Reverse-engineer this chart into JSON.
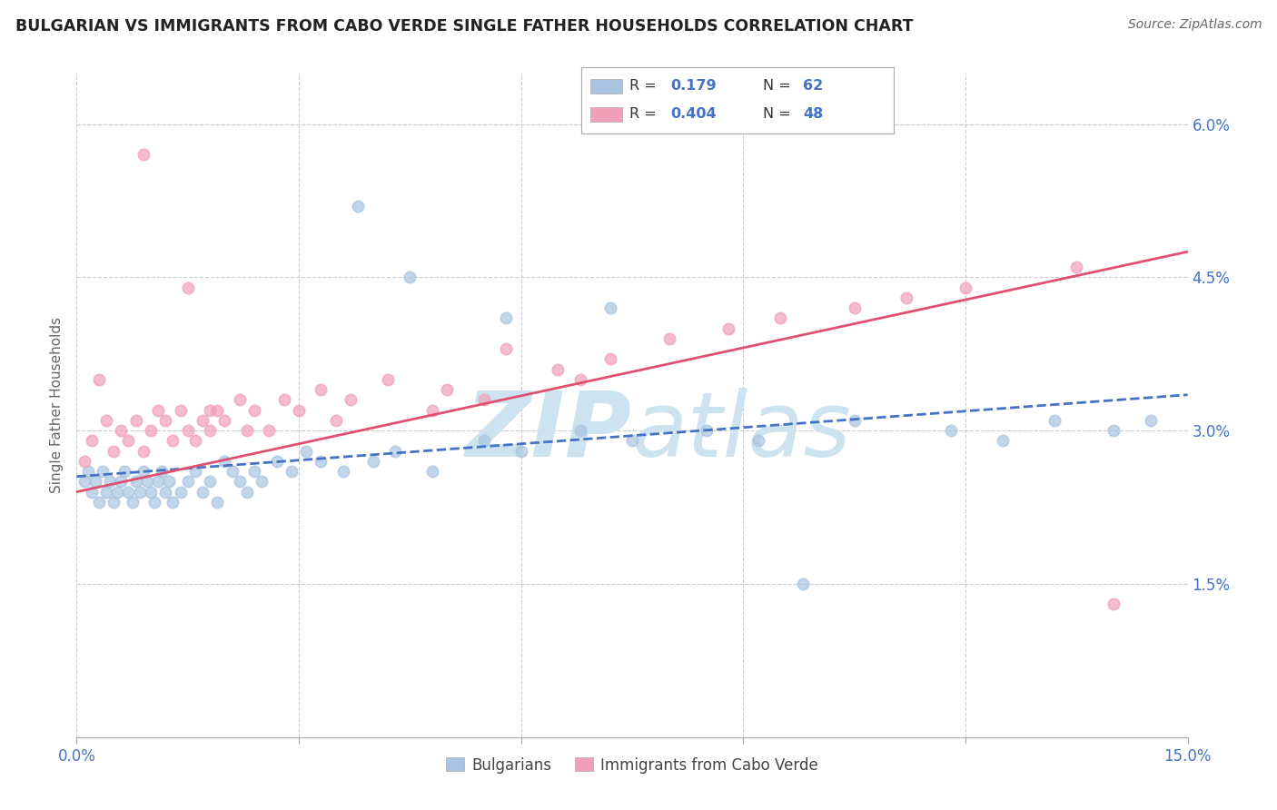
{
  "title": "BULGARIAN VS IMMIGRANTS FROM CABO VERDE SINGLE FATHER HOUSEHOLDS CORRELATION CHART",
  "source": "Source: ZipAtlas.com",
  "ylabel": "Single Father Households",
  "watermark": "ZIPat las",
  "xlim": [
    0.0,
    15.0
  ],
  "ylim": [
    0.0,
    6.5
  ],
  "xticks": [
    0.0,
    3.0,
    6.0,
    9.0,
    12.0,
    15.0
  ],
  "yticks_right": [
    1.5,
    3.0,
    4.5,
    6.0
  ],
  "ytick_labels_right": [
    "1.5%",
    "3.0%",
    "4.5%",
    "6.0%"
  ],
  "legend_labels": [
    "Bulgarians",
    "Immigrants from Cabo Verde"
  ],
  "R_bulgarian": 0.179,
  "N_bulgarian": 62,
  "R_cabo_verde": 0.404,
  "N_cabo_verde": 48,
  "scatter_color_bulgarian": "#a8c4e0",
  "scatter_color_cabo_verde": "#f0a0b8",
  "line_color_bulgarian": "#4472c4",
  "line_color_cabo_verde": "#e05070",
  "background_color": "#ffffff",
  "grid_color": "#cccccc",
  "title_color": "#222222",
  "source_color": "#666666",
  "watermark_color": "#cde4f0",
  "axis_label_color": "#4472c4",
  "bulgarian_x": [
    0.1,
    0.15,
    0.2,
    0.25,
    0.3,
    0.35,
    0.4,
    0.45,
    0.5,
    0.55,
    0.6,
    0.65,
    0.7,
    0.75,
    0.8,
    0.85,
    0.9,
    0.95,
    1.0,
    1.05,
    1.1,
    1.15,
    1.2,
    1.25,
    1.3,
    1.4,
    1.5,
    1.6,
    1.7,
    1.8,
    1.9,
    2.0,
    2.1,
    2.2,
    2.3,
    2.4,
    2.5,
    2.7,
    2.9,
    3.1,
    3.3,
    3.6,
    4.0,
    4.3,
    4.8,
    5.5,
    6.0,
    6.8,
    7.5,
    8.5,
    9.2,
    10.5,
    11.8,
    12.5,
    13.2,
    14.0,
    5.8,
    3.8,
    4.5,
    7.2,
    9.8,
    14.5
  ],
  "bulgarian_y": [
    2.5,
    2.6,
    2.4,
    2.5,
    2.3,
    2.6,
    2.4,
    2.5,
    2.3,
    2.4,
    2.5,
    2.6,
    2.4,
    2.3,
    2.5,
    2.4,
    2.6,
    2.5,
    2.4,
    2.3,
    2.5,
    2.6,
    2.4,
    2.5,
    2.3,
    2.4,
    2.5,
    2.6,
    2.4,
    2.5,
    2.3,
    2.7,
    2.6,
    2.5,
    2.4,
    2.6,
    2.5,
    2.7,
    2.6,
    2.8,
    2.7,
    2.6,
    2.7,
    2.8,
    2.6,
    2.9,
    2.8,
    3.0,
    2.9,
    3.0,
    2.9,
    3.1,
    3.0,
    2.9,
    3.1,
    3.0,
    4.1,
    5.2,
    4.5,
    4.2,
    1.5,
    3.1
  ],
  "cabo_verde_x": [
    0.1,
    0.2,
    0.3,
    0.4,
    0.5,
    0.6,
    0.7,
    0.8,
    0.9,
    1.0,
    1.1,
    1.2,
    1.3,
    1.4,
    1.5,
    1.6,
    1.7,
    1.8,
    1.9,
    2.0,
    2.2,
    2.4,
    2.6,
    2.8,
    3.0,
    3.3,
    3.7,
    4.2,
    5.0,
    5.8,
    6.5,
    7.2,
    8.0,
    8.8,
    9.5,
    10.5,
    11.2,
    12.0,
    13.5,
    5.5,
    6.8,
    4.8,
    3.5,
    2.3,
    1.5,
    0.9,
    1.8,
    14.0
  ],
  "cabo_verde_y": [
    2.7,
    2.9,
    3.5,
    3.1,
    2.8,
    3.0,
    2.9,
    3.1,
    2.8,
    3.0,
    3.2,
    3.1,
    2.9,
    3.2,
    3.0,
    2.9,
    3.1,
    3.0,
    3.2,
    3.1,
    3.3,
    3.2,
    3.0,
    3.3,
    3.2,
    3.4,
    3.3,
    3.5,
    3.4,
    3.8,
    3.6,
    3.7,
    3.9,
    4.0,
    4.1,
    4.2,
    4.3,
    4.4,
    4.6,
    3.3,
    3.5,
    3.2,
    3.1,
    3.0,
    4.4,
    5.7,
    3.2,
    1.3
  ],
  "bulg_line_x0": 0.0,
  "bulg_line_y0": 2.55,
  "bulg_line_x1": 15.0,
  "bulg_line_y1": 3.35,
  "cabo_line_x0": 0.0,
  "cabo_line_y0": 2.4,
  "cabo_line_x1": 15.0,
  "cabo_line_y1": 4.75
}
